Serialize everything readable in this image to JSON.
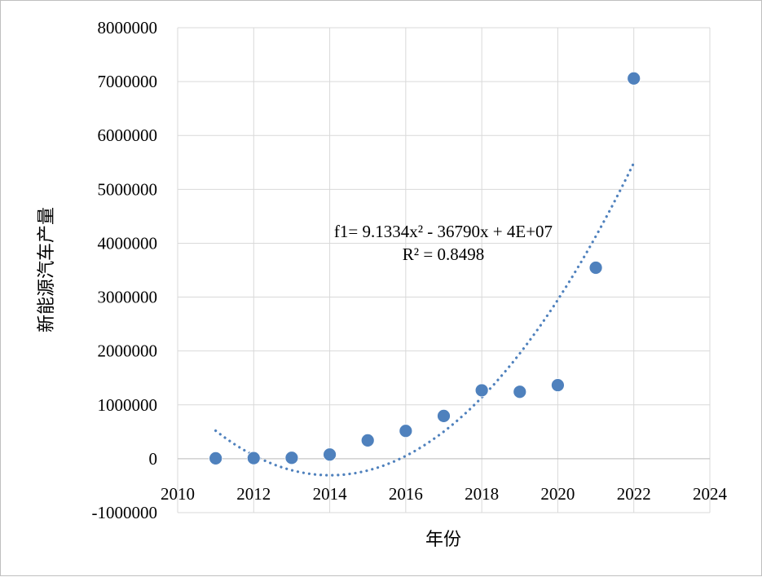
{
  "chart_data": {
    "type": "scatter",
    "xlabel": "年份",
    "ylabel": "新能源汽车产量",
    "xlim": [
      2010,
      2024
    ],
    "ylim": [
      -1000000,
      8000000
    ],
    "x_ticks": [
      2010,
      2012,
      2014,
      2016,
      2018,
      2020,
      2022,
      2024
    ],
    "y_ticks": [
      -1000000,
      0,
      1000000,
      2000000,
      3000000,
      4000000,
      5000000,
      6000000,
      7000000,
      8000000
    ],
    "grid": true,
    "series": [
      {
        "color": "#4f81bd",
        "points": [
          {
            "x": 2011,
            "y": 8000
          },
          {
            "x": 2012,
            "y": 12000
          },
          {
            "x": 2013,
            "y": 17000
          },
          {
            "x": 2014,
            "y": 78000
          },
          {
            "x": 2015,
            "y": 340000
          },
          {
            "x": 2016,
            "y": 517000
          },
          {
            "x": 2017,
            "y": 794000
          },
          {
            "x": 2018,
            "y": 1270000
          },
          {
            "x": 2019,
            "y": 1242000
          },
          {
            "x": 2020,
            "y": 1366000
          },
          {
            "x": 2021,
            "y": 3545000
          },
          {
            "x": 2022,
            "y": 7058000
          }
        ]
      }
    ],
    "trendline": {
      "type": "polynomial",
      "order": 2,
      "color": "#4f81bd",
      "x_range": [
        2011,
        2022
      ],
      "points": [
        {
          "x": 2011,
          "y": 570000
        },
        {
          "x": 2012,
          "y": 0
        },
        {
          "x": 2013,
          "y": -260000
        },
        {
          "x": 2014,
          "y": -290000
        },
        {
          "x": 2015,
          "y": -150000
        },
        {
          "x": 2016,
          "y": 50000
        },
        {
          "x": 2017,
          "y": 510000
        },
        {
          "x": 2018,
          "y": 1110000
        },
        {
          "x": 2019,
          "y": 1950000
        },
        {
          "x": 2020,
          "y": 2950000
        },
        {
          "x": 2021,
          "y": 4120000
        },
        {
          "x": 2022,
          "y": 5500000
        }
      ],
      "equation_label": "f1= 9.1334x² - 36790x + 4E+07",
      "r2_label": "R² = 0.8498"
    }
  }
}
